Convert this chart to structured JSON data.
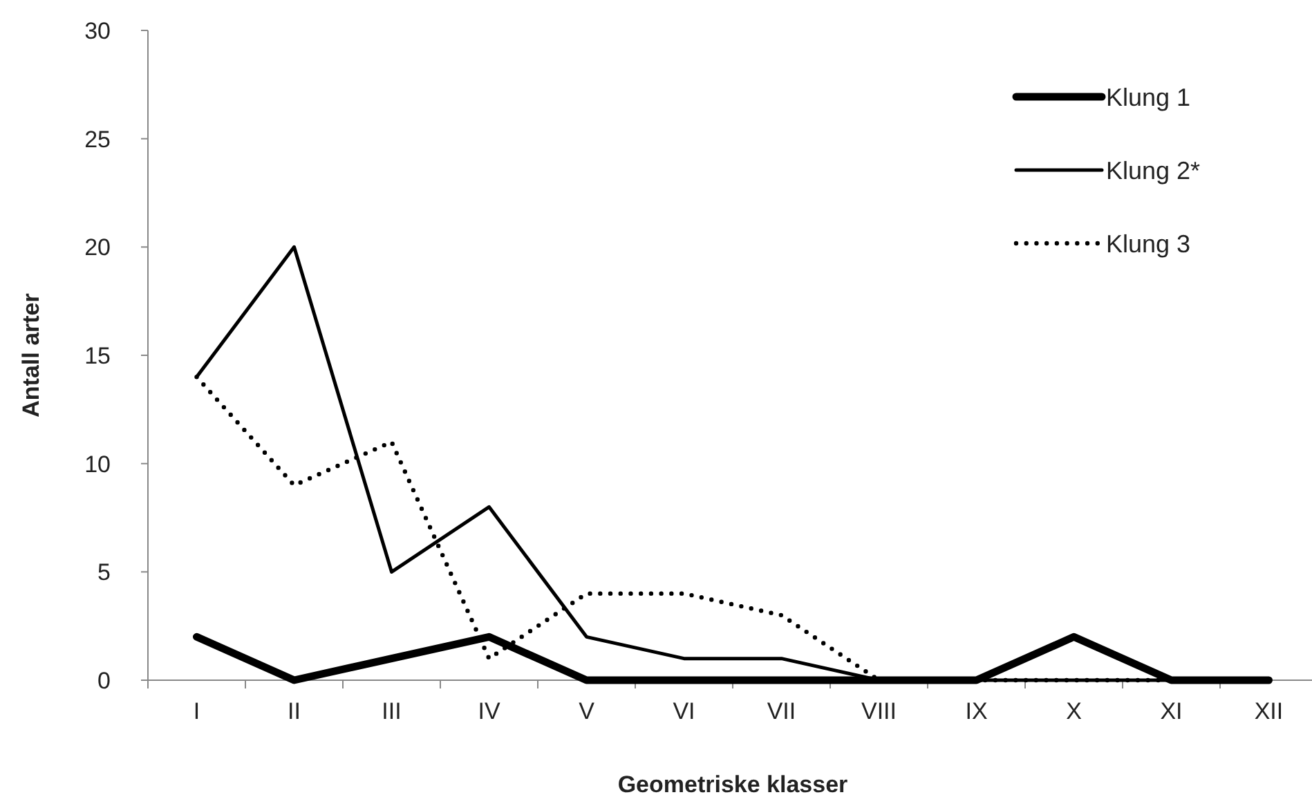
{
  "chart_data": {
    "type": "line",
    "xlabel": "Geometriske klasser",
    "ylabel": "Antall arter",
    "categories": [
      "I",
      "II",
      "III",
      "IV",
      "V",
      "VI",
      "VII",
      "VIII",
      "IX",
      "X",
      "XI",
      "XII"
    ],
    "series": [
      {
        "name": "Klung 1",
        "color": "#000000",
        "line_style": "solid",
        "values": [
          2,
          0,
          1,
          2,
          0,
          0,
          0,
          0,
          0,
          2,
          0,
          0
        ]
      },
      {
        "name": "Klung 2*",
        "color": "#000000",
        "line_style": "solid",
        "values": [
          14,
          20,
          5,
          8,
          2,
          1,
          1,
          0,
          0,
          0,
          0,
          0
        ]
      },
      {
        "name": "Klung 3",
        "color": "#000000",
        "line_style": "dotted",
        "values": [
          14,
          9,
          11,
          1,
          4,
          4,
          3,
          0,
          0,
          0,
          0,
          0
        ]
      }
    ],
    "ylim": [
      0,
      30
    ],
    "yticks": [
      0,
      5,
      10,
      15,
      20,
      25,
      30
    ],
    "grid": false,
    "legend": "top right",
    "marker": "none"
  }
}
